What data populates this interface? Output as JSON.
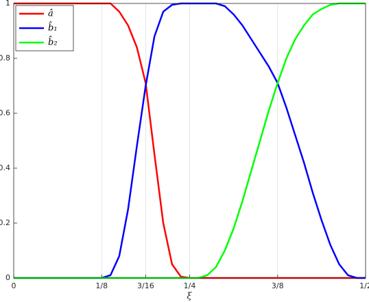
{
  "chart_data": {
    "type": "line",
    "xlabel": "ξ",
    "x": [
      0,
      0.0125,
      0.025,
      0.0375,
      0.05,
      0.0625,
      0.075,
      0.0875,
      0.1,
      0.1125,
      0.125,
      0.1375,
      0.15,
      0.1625,
      0.175,
      0.1875,
      0.2,
      0.2125,
      0.225,
      0.2375,
      0.25,
      0.2625,
      0.275,
      0.2875,
      0.3,
      0.3125,
      0.325,
      0.3375,
      0.35,
      0.3625,
      0.375,
      0.3875,
      0.4,
      0.4125,
      0.425,
      0.4375,
      0.45,
      0.4625,
      0.475,
      0.4875,
      0.5
    ],
    "series": [
      {
        "name": "â",
        "color": "#ff0000",
        "values": [
          1,
          1,
          1,
          1,
          1,
          1,
          1,
          1,
          1,
          1,
          1,
          1,
          0.97,
          0.92,
          0.84,
          0.71,
          0.45,
          0.2,
          0.05,
          0.005,
          0,
          0,
          0,
          0,
          0,
          0,
          0,
          0,
          0,
          0,
          0,
          0,
          0,
          0,
          0,
          0,
          0,
          0,
          0,
          0,
          0
        ]
      },
      {
        "name": "b̂₁",
        "color": "#0000ff",
        "values": [
          0,
          0,
          0,
          0,
          0,
          0,
          0,
          0,
          0,
          0,
          0,
          0.01,
          0.08,
          0.25,
          0.48,
          0.7,
          0.88,
          0.97,
          0.995,
          1,
          1,
          1,
          1,
          1,
          0.99,
          0.96,
          0.92,
          0.87,
          0.82,
          0.77,
          0.71,
          0.62,
          0.52,
          0.42,
          0.31,
          0.21,
          0.12,
          0.05,
          0.01,
          0,
          0
        ]
      },
      {
        "name": "b̂₂",
        "color": "#00ff00",
        "values": [
          0,
          0,
          0,
          0,
          0,
          0,
          0,
          0,
          0,
          0,
          0,
          0,
          0,
          0,
          0,
          0,
          0,
          0,
          0,
          0,
          0,
          0,
          0.01,
          0.04,
          0.1,
          0.18,
          0.28,
          0.39,
          0.5,
          0.61,
          0.71,
          0.8,
          0.87,
          0.92,
          0.96,
          0.98,
          0.995,
          1,
          1,
          1,
          1
        ]
      }
    ],
    "xlim": [
      0,
      0.5
    ],
    "xticks": [
      0,
      {
        "value": 0.125,
        "label": "1/8"
      },
      {
        "value": 0.1875,
        "label": "3/16"
      },
      {
        "value": 0.25,
        "label": "1/4"
      },
      {
        "value": 0.375,
        "label": "3/8"
      },
      {
        "value": 0.5,
        "label": "1/2"
      }
    ],
    "ylim": [
      0,
      1
    ],
    "yticks": [
      0,
      0.2,
      0.4,
      0.6,
      0.8,
      1
    ],
    "grid": "x",
    "legend": "top-left"
  }
}
